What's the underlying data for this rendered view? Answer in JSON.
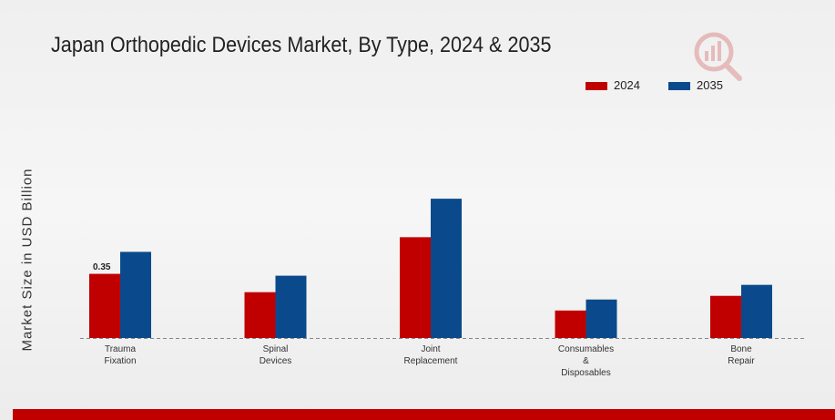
{
  "chart_data": {
    "type": "bar",
    "title": "Japan Orthopedic Devices Market, By Type, 2024 & 2035",
    "xlabel": "",
    "ylabel": "Market Size in USD Billion",
    "categories": [
      [
        "Trauma",
        "Fixation"
      ],
      [
        "Spinal",
        "Devices"
      ],
      [
        "Joint",
        "Replacement"
      ],
      [
        "Consumables",
        "&",
        "Disposables"
      ],
      [
        "Bone",
        "Repair"
      ]
    ],
    "series": [
      {
        "name": "2024",
        "color": "#c00000",
        "values": [
          0.35,
          0.25,
          0.55,
          0.15,
          0.23
        ]
      },
      {
        "name": "2035",
        "color": "#0a4a8c",
        "values": [
          0.47,
          0.34,
          0.76,
          0.21,
          0.29
        ]
      }
    ],
    "data_labels": [
      {
        "series": 0,
        "category": 0,
        "text": "0.35"
      }
    ],
    "ylim": [
      0,
      0.85
    ],
    "grid": false,
    "legend_position": "top-right"
  },
  "logo": {
    "icon": "bar-chart-magnifier-icon",
    "color": "#c00000"
  }
}
